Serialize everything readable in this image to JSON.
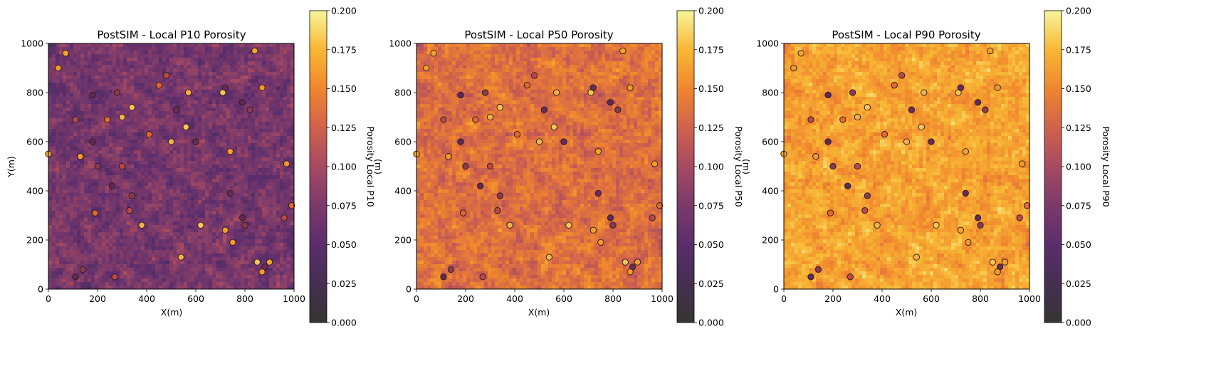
{
  "chart_data": [
    {
      "type": "heatmap",
      "title": "PostSIM - Local P10 Porosity",
      "xlabel": "X(m)",
      "ylabel": "Y(m)",
      "xlim": [
        0,
        1000
      ],
      "ylim": [
        0,
        1000
      ],
      "xticks": [
        "0",
        "200",
        "400",
        "600",
        "800",
        "1000"
      ],
      "yticks": [
        "0",
        "200",
        "400",
        "600",
        "800",
        "1000"
      ],
      "colorbar": {
        "label": "Porosity Local P10",
        "overlap_label": "(m)",
        "range": [
          0.0,
          0.2
        ],
        "ticks": [
          "0.000",
          "0.025",
          "0.050",
          "0.075",
          "0.100",
          "0.125",
          "0.150",
          "0.175",
          "0.200"
        ],
        "colormap": "inferno"
      },
      "grid_mean": 0.07,
      "grid_spread": 0.03,
      "well_colors": [
        "#f6a22a",
        "#f39a2c",
        "#5e2a55",
        "#8a3a50",
        "#b8484a",
        "#e2682c",
        "#f4b14a",
        "#fbc555",
        "#6b2b58"
      ]
    },
    {
      "type": "heatmap",
      "title": "PostSIM - Local P50 Porosity",
      "xlabel": "X(m)",
      "ylabel": "",
      "xlim": [
        0,
        1000
      ],
      "ylim": [
        0,
        1000
      ],
      "xticks": [
        "0",
        "200",
        "400",
        "600",
        "800",
        "1000"
      ],
      "yticks": [
        "0",
        "200",
        "400",
        "600",
        "800",
        "1000"
      ],
      "colorbar": {
        "label": "Porosity Local P50",
        "overlap_label": "(m)",
        "range": [
          0.0,
          0.2
        ],
        "ticks": [
          "0.000",
          "0.025",
          "0.050",
          "0.075",
          "0.100",
          "0.125",
          "0.150",
          "0.175",
          "0.200"
        ],
        "colormap": "inferno"
      },
      "grid_mean": 0.135,
      "grid_spread": 0.025,
      "well_colors": [
        "#f6a22a",
        "#f39a2c",
        "#5e2a55",
        "#8a3a50",
        "#b8484a",
        "#e2682c",
        "#f4b14a",
        "#fbc555",
        "#6b2b58"
      ]
    },
    {
      "type": "heatmap",
      "title": "PostSIM - Local P90 Porosity",
      "xlabel": "X(m)",
      "ylabel": "",
      "xlim": [
        0,
        1000
      ],
      "ylim": [
        0,
        1000
      ],
      "xticks": [
        "0",
        "200",
        "400",
        "600",
        "800",
        "1000"
      ],
      "yticks": [
        "0",
        "200",
        "400",
        "600",
        "800",
        "1000"
      ],
      "colorbar": {
        "label": "Porosity Local P90",
        "overlap_label": "",
        "range": [
          0.0,
          0.2
        ],
        "ticks": [
          "0.000",
          "0.025",
          "0.050",
          "0.075",
          "0.100",
          "0.125",
          "0.150",
          "0.175",
          "0.200"
        ],
        "colormap": "inferno"
      },
      "grid_mean": 0.165,
      "grid_spread": 0.022,
      "well_colors": [
        "#f6a22a",
        "#f39a2c",
        "#5e2a55",
        "#8a3a50",
        "#b8484a",
        "#e2682c",
        "#f4b14a",
        "#fbc555",
        "#6b2b58"
      ]
    }
  ],
  "wells": [
    [
      70,
      960
    ],
    [
      40,
      900
    ],
    [
      180,
      790
    ],
    [
      280,
      800
    ],
    [
      480,
      870
    ],
    [
      450,
      830
    ],
    [
      570,
      800
    ],
    [
      710,
      800
    ],
    [
      720,
      820
    ],
    [
      840,
      970
    ],
    [
      870,
      820
    ],
    [
      790,
      760
    ],
    [
      820,
      730
    ],
    [
      110,
      690
    ],
    [
      240,
      690
    ],
    [
      300,
      700
    ],
    [
      340,
      740
    ],
    [
      520,
      730
    ],
    [
      0,
      550
    ],
    [
      130,
      540
    ],
    [
      180,
      600
    ],
    [
      200,
      500
    ],
    [
      300,
      500
    ],
    [
      410,
      630
    ],
    [
      500,
      600
    ],
    [
      560,
      660
    ],
    [
      600,
      600
    ],
    [
      740,
      560
    ],
    [
      970,
      510
    ],
    [
      260,
      420
    ],
    [
      340,
      380
    ],
    [
      330,
      320
    ],
    [
      190,
      310
    ],
    [
      380,
      260
    ],
    [
      620,
      260
    ],
    [
      740,
      390
    ],
    [
      720,
      240
    ],
    [
      750,
      190
    ],
    [
      790,
      290
    ],
    [
      800,
      260
    ],
    [
      960,
      290
    ],
    [
      990,
      340
    ],
    [
      540,
      130
    ],
    [
      850,
      110
    ],
    [
      880,
      90
    ],
    [
      900,
      110
    ],
    [
      870,
      70
    ],
    [
      110,
      50
    ],
    [
      140,
      80
    ],
    [
      270,
      50
    ]
  ]
}
